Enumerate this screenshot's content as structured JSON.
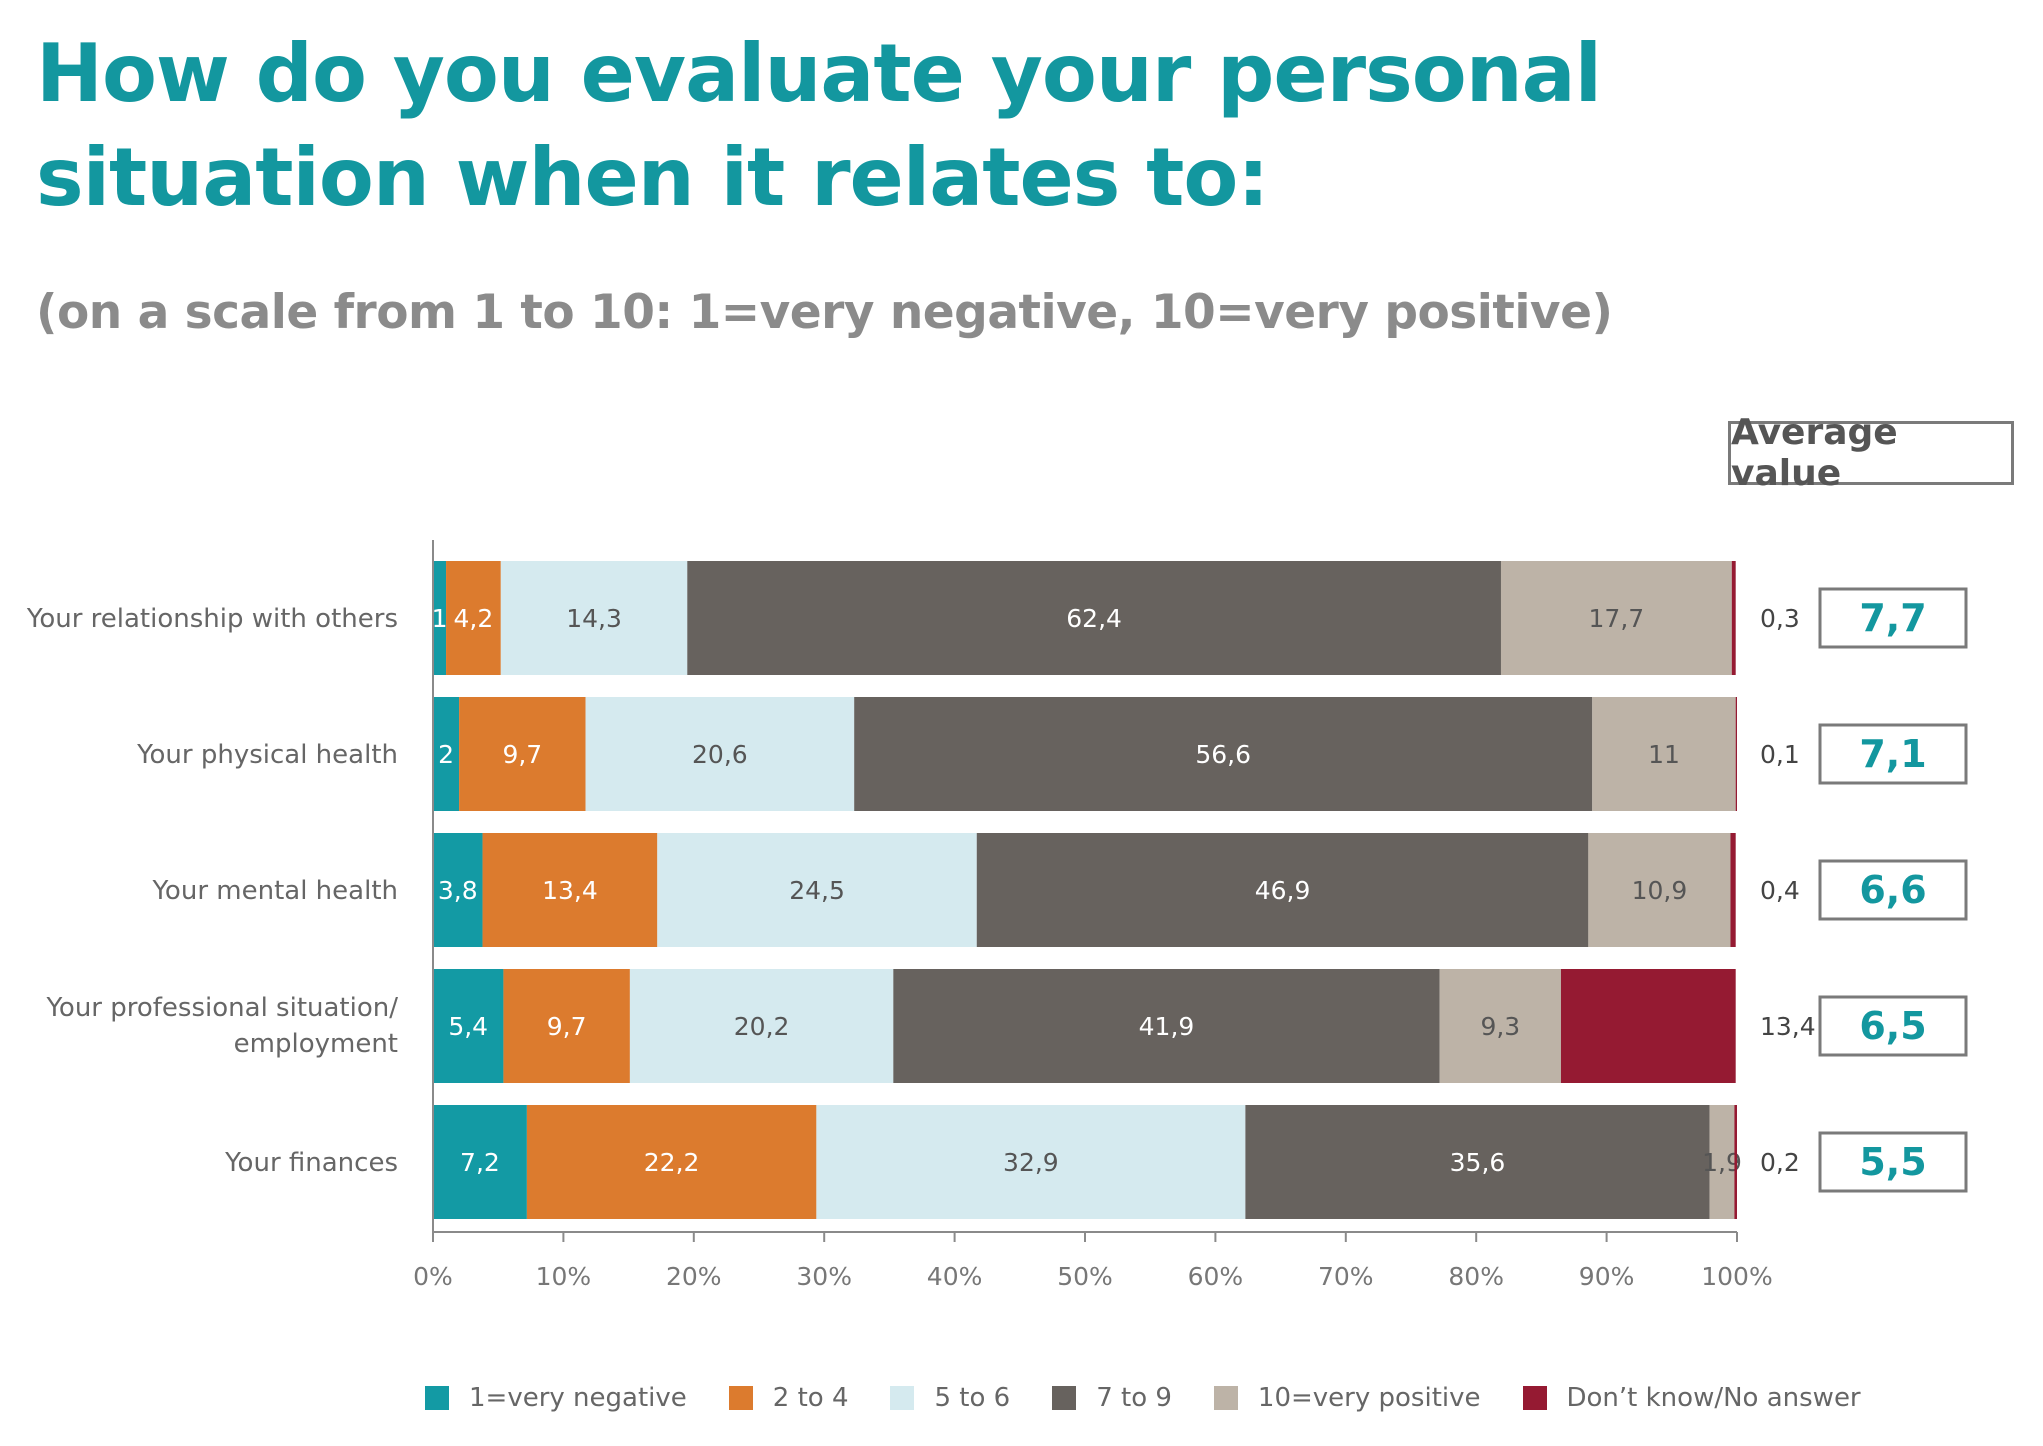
{
  "chart_data": {
    "type": "bar",
    "orientation": "horizontal",
    "stacked": true,
    "title": "How do you evaluate your personal situation when it relates to:",
    "subtitle": "(on a scale from 1 to 10: 1=very negative, 10=very positive)",
    "categories": [
      "Your relationship with others",
      "Your physical health",
      "Your mental health",
      "Your professional situation/ employment",
      "Your finances"
    ],
    "series": [
      {
        "name": "1=very negative",
        "color": "#139aa4",
        "values": [
          1,
          2,
          3.8,
          5.4,
          7.2
        ],
        "labels": [
          "1",
          "2",
          "3,8",
          "5,4",
          "7,2"
        ]
      },
      {
        "name": "2 to 4",
        "color": "#dc7b2e",
        "values": [
          4.2,
          9.7,
          13.4,
          9.7,
          22.2
        ],
        "labels": [
          "4,2",
          "9,7",
          "13,4",
          "9,7",
          "22,2"
        ]
      },
      {
        "name": "5 to 6",
        "color": "#d5eaef",
        "values": [
          14.3,
          20.6,
          24.5,
          20.2,
          32.9
        ],
        "labels": [
          "14,3",
          "20,6",
          "24,5",
          "20,2",
          "32,9"
        ]
      },
      {
        "name": "7 to 9",
        "color": "#67625e",
        "values": [
          62.4,
          56.6,
          46.9,
          41.9,
          35.6
        ],
        "labels": [
          "62,4",
          "56,6",
          "46,9",
          "41,9",
          "35,6"
        ]
      },
      {
        "name": "10=very positive",
        "color": "#bdb3a7",
        "values": [
          17.7,
          11,
          10.9,
          9.3,
          1.9
        ],
        "labels": [
          "17,7",
          "11",
          "10,9",
          "9,3",
          "1,9"
        ]
      },
      {
        "name": "Don’t know/No answer",
        "color": "#951a32",
        "values": [
          0.3,
          0.1,
          0.4,
          13.4,
          0.2
        ],
        "labels": [
          "0,3",
          "0,1",
          "0,4",
          "13,4",
          "0,2"
        ]
      }
    ],
    "xlim": [
      0,
      100
    ],
    "xticks": [
      "0%",
      "10%",
      "20%",
      "30%",
      "40%",
      "50%",
      "60%",
      "70%",
      "80%",
      "90%",
      "100%"
    ],
    "average_header": "Average value",
    "averages": [
      "7,7",
      "7,1",
      "6,6",
      "6,5",
      "5,5"
    ],
    "legend_position": "bottom"
  },
  "colors": {
    "title": "#13979f",
    "subtitle": "#8b8b8b",
    "average_value": "#13979f"
  }
}
